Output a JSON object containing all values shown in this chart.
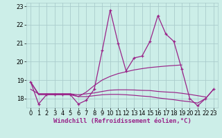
{
  "xlabel": "Windchill (Refroidissement éolien,°C)",
  "x": [
    0,
    1,
    2,
    3,
    4,
    5,
    6,
    7,
    8,
    9,
    10,
    11,
    12,
    13,
    14,
    15,
    16,
    17,
    18,
    19,
    20,
    21,
    22,
    23
  ],
  "line1": [
    18.9,
    17.7,
    18.2,
    18.2,
    18.2,
    18.2,
    17.7,
    17.9,
    18.5,
    20.6,
    22.8,
    21.0,
    19.5,
    20.2,
    20.3,
    21.1,
    22.5,
    21.5,
    21.1,
    19.6,
    18.0,
    17.6,
    18.0,
    18.5
  ],
  "line2": [
    18.9,
    18.2,
    18.2,
    18.2,
    18.2,
    18.2,
    18.1,
    18.35,
    18.7,
    19.0,
    19.2,
    19.35,
    19.45,
    19.55,
    19.62,
    19.68,
    19.72,
    19.76,
    19.79,
    19.82,
    null,
    null,
    null,
    null
  ],
  "line3": [
    18.9,
    18.25,
    18.25,
    18.25,
    18.25,
    18.25,
    18.2,
    18.25,
    18.3,
    18.38,
    18.45,
    18.47,
    18.47,
    18.46,
    18.44,
    18.43,
    18.38,
    18.35,
    18.33,
    18.28,
    18.22,
    18.15,
    18.08,
    null
  ],
  "line4": [
    18.5,
    18.25,
    18.25,
    18.25,
    18.25,
    18.25,
    18.1,
    18.1,
    18.15,
    18.2,
    18.22,
    18.22,
    18.2,
    18.17,
    18.13,
    18.1,
    18.03,
    17.98,
    17.93,
    17.87,
    17.82,
    17.75,
    18.0,
    18.5
  ],
  "line_color": "#992288",
  "bg_color": "#CCEEE8",
  "grid_color": "#AACCCC",
  "ylim": [
    17.5,
    23.2
  ],
  "xlim": [
    -0.5,
    23.5
  ],
  "yticks": [
    18,
    19,
    20,
    21,
    22,
    23
  ],
  "xticks": [
    0,
    1,
    2,
    3,
    4,
    5,
    6,
    7,
    8,
    9,
    10,
    11,
    12,
    13,
    14,
    15,
    16,
    17,
    18,
    19,
    20,
    21,
    22,
    23
  ],
  "xlabel_fontsize": 6.5,
  "tick_fontsize": 6.0
}
